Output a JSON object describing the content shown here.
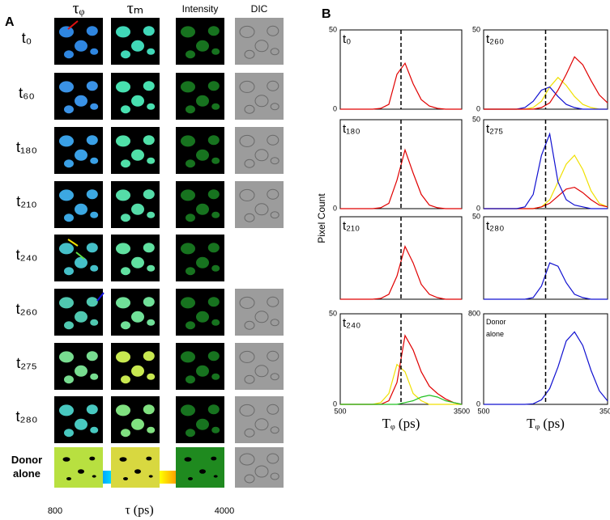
{
  "panel_a": {
    "label": "A",
    "columns": [
      "τᵩ",
      "τₘ",
      "Intensity",
      "DIC"
    ],
    "rows": [
      "t₀",
      "t₆₀",
      "t₁₈₀",
      "t₂₁₀",
      "t₂₄₀",
      "t₂₆₀",
      "t₂₇₅",
      "t₂₈₀",
      "Donor alone"
    ],
    "colorbar": {
      "label": "τ (ps)",
      "min": 800,
      "max": 4000
    }
  },
  "panel_b": {
    "label": "B",
    "ylabel": "Pixel Count"
  },
  "chart_data": [
    {
      "type": "line",
      "title": "t₀",
      "x": [
        500,
        700,
        900,
        1100,
        1300,
        1500,
        1700,
        1900,
        2100,
        2300,
        2500,
        2700,
        2900,
        3100,
        3300,
        3500
      ],
      "series": [
        {
          "color": "#e00000",
          "values": [
            0,
            0,
            0,
            0,
            0,
            0.5,
            3,
            22,
            29,
            16,
            6,
            2,
            0.5,
            0,
            0,
            0
          ]
        }
      ],
      "xlim": [
        500,
        3500
      ],
      "ylim": [
        0,
        50
      ],
      "yticks": [
        0,
        50
      ],
      "xticks": [],
      "reference_x": 2000
    },
    {
      "type": "line",
      "title": "t₁₈₀",
      "x": [
        500,
        700,
        900,
        1100,
        1300,
        1500,
        1700,
        1900,
        2100,
        2300,
        2500,
        2700,
        2900,
        3100,
        3300,
        3500
      ],
      "series": [
        {
          "color": "#e00000",
          "values": [
            0,
            0,
            0,
            0,
            0,
            0.5,
            3,
            16,
            33,
            20,
            8,
            2,
            0.5,
            0,
            0,
            0
          ]
        }
      ],
      "xlim": [
        500,
        3500
      ],
      "ylim": [
        0,
        50
      ],
      "yticks": [
        0
      ],
      "xticks": [],
      "reference_x": 2000
    },
    {
      "type": "line",
      "title": "t₂₁₀",
      "x": [
        500,
        700,
        900,
        1100,
        1300,
        1500,
        1700,
        1900,
        2100,
        2300,
        2500,
        2700,
        2900,
        3100,
        3300,
        3500
      ],
      "series": [
        {
          "color": "#e00000",
          "values": [
            0,
            0,
            0,
            0,
            0,
            0.5,
            3,
            14,
            32,
            22,
            9,
            3,
            1,
            0,
            0,
            0
          ]
        }
      ],
      "xlim": [
        500,
        3500
      ],
      "ylim": [
        0,
        50
      ],
      "yticks": [],
      "xticks": [],
      "reference_x": 2000
    },
    {
      "type": "line",
      "title": "t₂₄₀",
      "x": [
        500,
        700,
        900,
        1100,
        1300,
        1500,
        1700,
        1900,
        2100,
        2300,
        2500,
        2700,
        2900,
        3100,
        3300,
        3500
      ],
      "series": [
        {
          "color": "#f0e000",
          "values": [
            0,
            0,
            0,
            0,
            0,
            1,
            6,
            22,
            18,
            6,
            2,
            0,
            0,
            0,
            0,
            0
          ]
        },
        {
          "color": "#e00000",
          "values": [
            0,
            0,
            0,
            0,
            0,
            0,
            2,
            12,
            38,
            30,
            18,
            10,
            6,
            3,
            1,
            0
          ]
        },
        {
          "color": "#20c020",
          "values": [
            0,
            0,
            0,
            0,
            0,
            0,
            0,
            0,
            1,
            2,
            4,
            5,
            4,
            2,
            1,
            0
          ]
        }
      ],
      "xlim": [
        500,
        3500
      ],
      "ylim": [
        0,
        50
      ],
      "yticks": [
        0,
        50
      ],
      "xticks": [
        500,
        3500
      ],
      "xlabel": "Tᵩ (ps)",
      "reference_x": 2000
    },
    {
      "type": "line",
      "title": "t₂₆₀",
      "x": [
        500,
        700,
        900,
        1100,
        1300,
        1500,
        1700,
        1900,
        2100,
        2300,
        2500,
        2700,
        2900,
        3100,
        3300,
        3500
      ],
      "series": [
        {
          "color": "#f0e000",
          "values": [
            0,
            0,
            0,
            0,
            0,
            0,
            1,
            5,
            14,
            20,
            15,
            8,
            3,
            1,
            0,
            0
          ]
        },
        {
          "color": "#1010d0",
          "values": [
            0,
            0,
            0,
            0,
            0,
            1,
            5,
            12,
            14,
            8,
            3,
            1,
            0,
            0,
            0,
            0
          ]
        },
        {
          "color": "#e00000",
          "values": [
            0,
            0,
            0,
            0,
            0,
            0,
            0,
            1,
            4,
            12,
            22,
            33,
            28,
            18,
            9,
            4
          ]
        }
      ],
      "xlim": [
        500,
        3500
      ],
      "ylim": [
        0,
        50
      ],
      "yticks": [
        0,
        50
      ],
      "xticks": [],
      "reference_x": 2000
    },
    {
      "type": "line",
      "title": "t₂₇₅",
      "x": [
        500,
        700,
        900,
        1100,
        1300,
        1500,
        1700,
        1900,
        2100,
        2300,
        2500,
        2700,
        2900,
        3100,
        3300,
        3500
      ],
      "series": [
        {
          "color": "#f0e000",
          "values": [
            0,
            0,
            0,
            0,
            0,
            0,
            0,
            1,
            5,
            15,
            25,
            30,
            22,
            10,
            3,
            1
          ]
        },
        {
          "color": "#e00000",
          "values": [
            0,
            0,
            0,
            0,
            0,
            0,
            0,
            1,
            3,
            7,
            11,
            12,
            9,
            5,
            2,
            1
          ]
        },
        {
          "color": "#1010d0",
          "values": [
            0,
            0,
            0,
            0,
            0,
            1,
            8,
            30,
            42,
            15,
            5,
            2,
            1,
            0,
            0,
            0
          ]
        }
      ],
      "xlim": [
        500,
        3500
      ],
      "ylim": [
        0,
        50
      ],
      "yticks": [
        0,
        50
      ],
      "xticks": [],
      "reference_x": 2000
    },
    {
      "type": "line",
      "title": "t₂₈₀",
      "x": [
        500,
        700,
        900,
        1100,
        1300,
        1500,
        1700,
        1900,
        2100,
        2300,
        2500,
        2700,
        2900,
        3100,
        3300,
        3500
      ],
      "series": [
        {
          "color": "#1010d0",
          "values": [
            0,
            0,
            0,
            0,
            0,
            0,
            1,
            8,
            22,
            20,
            10,
            3,
            1,
            0,
            0,
            0
          ]
        }
      ],
      "xlim": [
        500,
        3500
      ],
      "ylim": [
        0,
        50
      ],
      "yticks": [
        50
      ],
      "xticks": [],
      "reference_x": 2000
    },
    {
      "type": "line",
      "title": "Donor alone",
      "x": [
        500,
        700,
        900,
        1100,
        1300,
        1500,
        1700,
        1900,
        2100,
        2300,
        2500,
        2700,
        2900,
        3100,
        3300,
        3500
      ],
      "series": [
        {
          "color": "#1010d0",
          "values": [
            0,
            0,
            0,
            0,
            0,
            0,
            5,
            40,
            140,
            330,
            560,
            640,
            520,
            300,
            120,
            30
          ]
        }
      ],
      "xlim": [
        500,
        3500
      ],
      "ylim": [
        0,
        800
      ],
      "yticks": [
        0,
        800
      ],
      "xticks": [
        500,
        3500
      ],
      "xlabel": "Tᵩ (ps)",
      "reference_x": 2000
    }
  ]
}
